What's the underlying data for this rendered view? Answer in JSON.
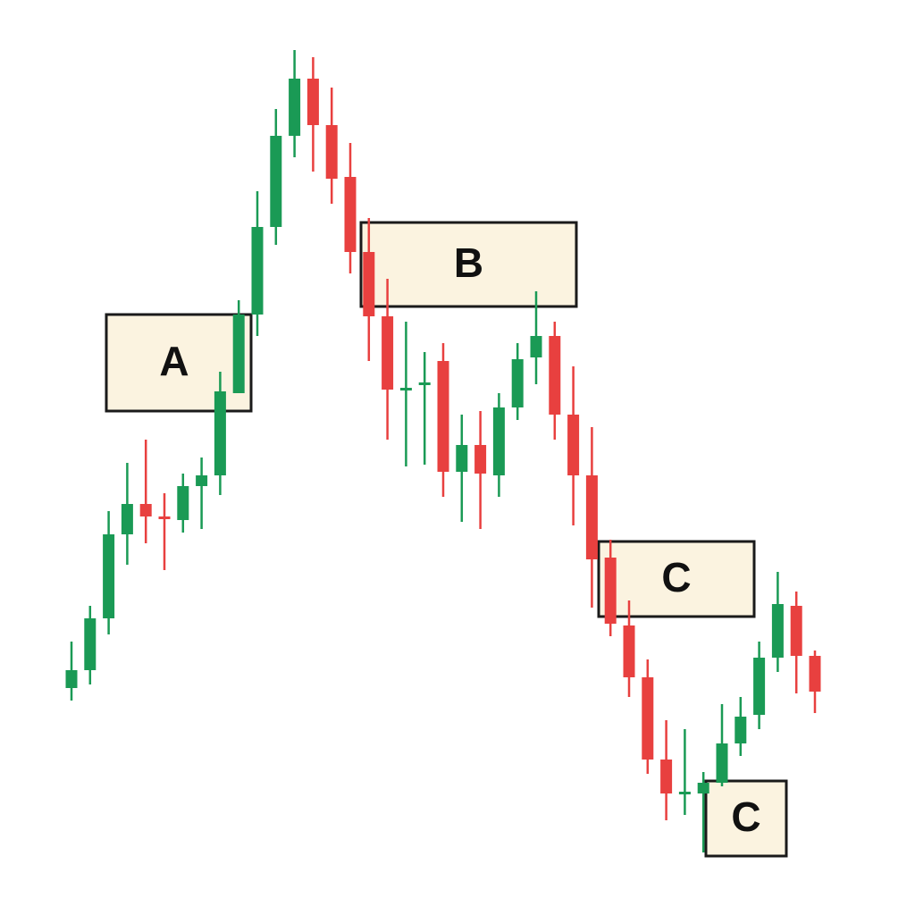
{
  "chart_data": {
    "type": "candlestick",
    "ylim": [
      0,
      1024
    ],
    "up_color": "#1a9a55",
    "down_color": "#e8403f",
    "open": [
      254,
      274,
      332,
      426,
      460,
      446,
      442,
      480,
      492,
      584,
      672,
      770,
      872,
      936,
      884,
      826,
      742,
      670,
      590,
      594,
      620,
      496,
      526,
      492,
      568,
      624,
      648,
      560,
      492,
      400,
      324,
      266,
      174,
      136,
      136,
      148,
      192,
      224,
      288,
      346,
      290
    ],
    "high": [
      306,
      346,
      452,
      506,
      532,
      472,
      494,
      512,
      608,
      688,
      810,
      902,
      968,
      960,
      926,
      864,
      780,
      712,
      664,
      630,
      640,
      560,
      564,
      584,
      640,
      698,
      664,
      614,
      546,
      420,
      352,
      286,
      218,
      208,
      160,
      236,
      244,
      306,
      384,
      362,
      296
    ],
    "low": [
      240,
      258,
      314,
      392,
      416,
      386,
      428,
      432,
      470,
      584,
      648,
      750,
      848,
      832,
      796,
      718,
      620,
      532,
      502,
      504,
      468,
      440,
      432,
      468,
      554,
      594,
      532,
      436,
      344,
      312,
      244,
      158,
      106,
      112,
      70,
      144,
      178,
      208,
      272,
      248,
      226
    ],
    "close": [
      274,
      332,
      426,
      460,
      446,
      444,
      480,
      492,
      586,
      672,
      770,
      872,
      936,
      884,
      824,
      742,
      670,
      588,
      590,
      596,
      496,
      526,
      494,
      568,
      622,
      648,
      560,
      492,
      398,
      326,
      266,
      174,
      136,
      138,
      148,
      192,
      222,
      288,
      348,
      290,
      250
    ],
    "annotations": [
      "A",
      "B",
      "C",
      "C"
    ]
  }
}
